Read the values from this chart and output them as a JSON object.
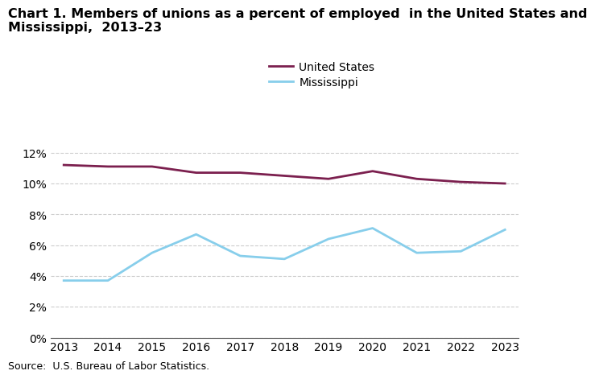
{
  "years": [
    2013,
    2014,
    2015,
    2016,
    2017,
    2018,
    2019,
    2020,
    2021,
    2022,
    2023
  ],
  "us_values": [
    11.2,
    11.1,
    11.1,
    10.7,
    10.7,
    10.5,
    10.3,
    10.8,
    10.3,
    10.1,
    10.0
  ],
  "ms_values": [
    3.7,
    3.7,
    5.5,
    6.7,
    5.3,
    5.1,
    6.4,
    7.1,
    5.5,
    5.6,
    7.0
  ],
  "us_color": "#7b1f4e",
  "ms_color": "#87ceeb",
  "us_label": "United States",
  "ms_label": "Mississippi",
  "title_line1": "Chart 1. Members of unions as a percent of employed  in the United States and",
  "title_line2": "Mississippi,  2013–23",
  "source_text": "Source:  U.S. Bureau of Labor Statistics.",
  "ylim": [
    0,
    13
  ],
  "yticks": [
    0,
    2,
    4,
    6,
    8,
    10,
    12
  ],
  "xlim": [
    2013,
    2023
  ],
  "background_color": "#ffffff",
  "grid_color": "#cccccc",
  "line_width": 2.0,
  "title_fontsize": 11.5,
  "tick_fontsize": 10,
  "legend_fontsize": 10,
  "source_fontsize": 9
}
